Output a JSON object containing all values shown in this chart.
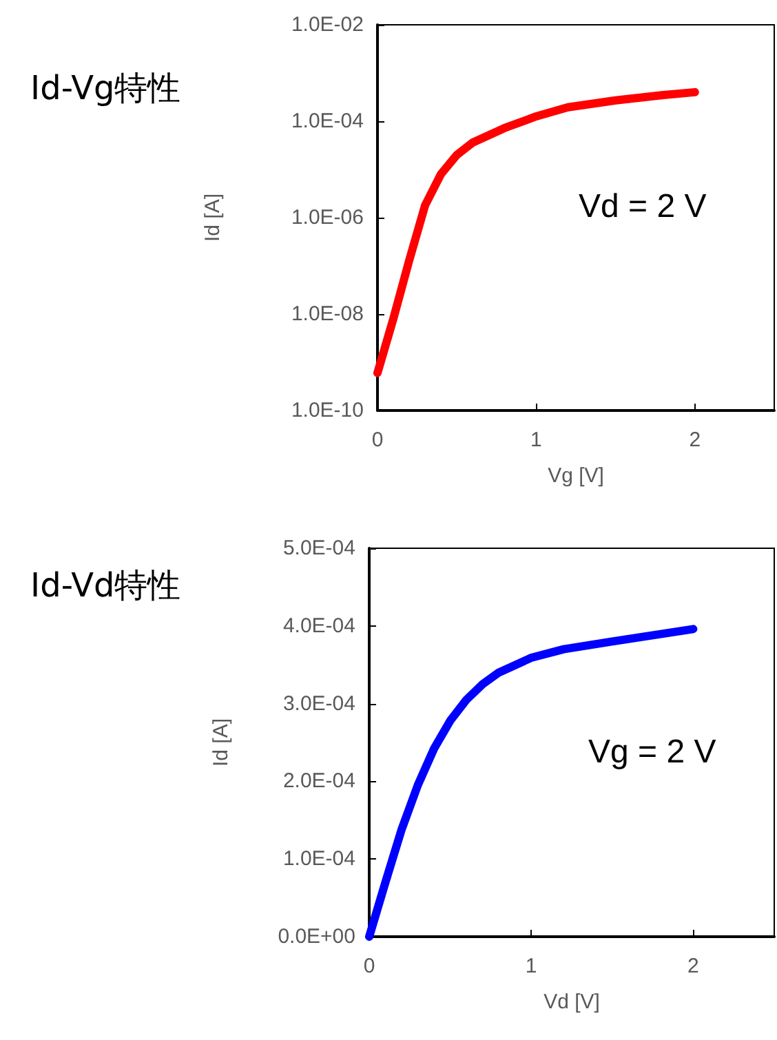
{
  "chart_data": [
    {
      "type": "line",
      "title": "Id-Vg特性",
      "xlabel": "Vg [V]",
      "ylabel": "Id [A]",
      "annotations": [
        "Vd = 2 V"
      ],
      "log": "y",
      "marker": "none",
      "line_style": "solid",
      "x": [
        0,
        0.1,
        0.2,
        0.3,
        0.4,
        0.5,
        0.6,
        0.8,
        1.0,
        1.2,
        1.5,
        1.8,
        2.0
      ],
      "series": [
        {
          "color": "#ff0000",
          "values": [
            6e-10,
            8e-09,
            1.3e-07,
            1.8e-06,
            8e-06,
            2e-05,
            3.6e-05,
            7.2e-05,
            0.000126,
            0.000195,
            0.00027,
            0.00035,
            0.0004
          ]
        }
      ],
      "xlim": [
        0,
        2.5
      ],
      "xticks": [
        0,
        1,
        2
      ],
      "ylim": [
        1e-10,
        0.01
      ],
      "yticks": [
        {
          "value": 1e-10,
          "label": "1.0E-10"
        },
        {
          "value": 1e-08,
          "label": "1.0E-08"
        },
        {
          "value": 1e-06,
          "label": "1.0E-06"
        },
        {
          "value": 0.0001,
          "label": "1.0E-04"
        },
        {
          "value": 0.01,
          "label": "1.0E-02"
        }
      ]
    },
    {
      "type": "line",
      "title": "Id-Vd特性",
      "xlabel": "Vd [V]",
      "ylabel": "Id [A]",
      "annotations": [
        "Vg = 2 V"
      ],
      "marker": "none",
      "line_style": "solid",
      "x": [
        0,
        0.1,
        0.2,
        0.3,
        0.4,
        0.5,
        0.6,
        0.7,
        0.8,
        1.0,
        1.2,
        1.5,
        2.0
      ],
      "series": [
        {
          "color": "#0000ff",
          "values": [
            0,
            7e-05,
            0.000138,
            0.000195,
            0.000242,
            0.000278,
            0.000305,
            0.000325,
            0.00034,
            0.000359,
            0.00037,
            0.00038,
            0.000396
          ]
        }
      ],
      "xlim": [
        0,
        2.5
      ],
      "xticks": [
        0,
        1,
        2
      ],
      "ylim": [
        0,
        0.0005
      ],
      "yticks": [
        {
          "value": 0,
          "label": "0.0E+00"
        },
        {
          "value": 0.0001,
          "label": "1.0E-04"
        },
        {
          "value": 0.0002,
          "label": "2.0E-04"
        },
        {
          "value": 0.0003,
          "label": "3.0E-04"
        },
        {
          "value": 0.0004,
          "label": "4.0E-04"
        },
        {
          "value": 0.0005,
          "label": "5.0E-04"
        }
      ]
    }
  ]
}
